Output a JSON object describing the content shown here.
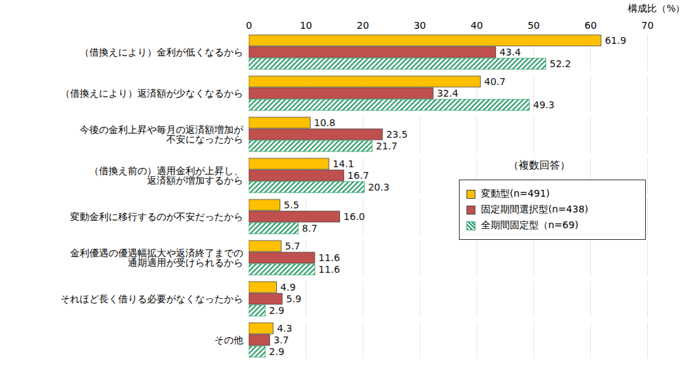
{
  "chart_data": {
    "type": "bar",
    "orientation": "horizontal",
    "x_label": "構成比（%）",
    "annotation": "（複数回答）",
    "categories": [
      "（借換えにより）金利が低くなるから",
      "（借換えにより）返済額が少なくなるから",
      "今後の金利上昇や毎月の返済額増加が\n不安になったから",
      "（借換え前の）適用金利が上昇し、\n返済額が増加するから",
      "変動金利に移行するのが不安だったから",
      "金利優遇の優遇幅拡大や返済終了までの\n通期適用が受けられるから",
      "それほど長く借りる必要がなくなったから",
      "その他"
    ],
    "series": [
      {
        "name": "変動型(n=491)",
        "color": "#FFC000",
        "values": [
          61.9,
          40.7,
          10.8,
          14.1,
          5.5,
          5.7,
          4.9,
          4.3
        ],
        "value_labels": [
          "61.9",
          "40.7",
          "10.8",
          "14.1",
          "5.5",
          "5.7",
          "4.9",
          "4.3"
        ]
      },
      {
        "name": "固定期間選択型(n=438)",
        "color": "#C0504D",
        "values": [
          43.4,
          32.4,
          23.5,
          16.7,
          16.0,
          11.6,
          5.9,
          3.7
        ],
        "value_labels": [
          "43.4",
          "32.4",
          "23.5",
          "16.7",
          "16.0",
          "11.6",
          "5.9",
          "3.7"
        ]
      },
      {
        "name": "全期間固定型（n=69)",
        "color": "#2E9E6A",
        "line_style": "hatched",
        "values": [
          52.2,
          49.3,
          21.7,
          20.3,
          8.7,
          11.6,
          2.9,
          2.9
        ],
        "value_labels": [
          "52.2",
          "49.3",
          "21.7",
          "20.3",
          "8.7",
          "11.6",
          "2.9",
          "2.9"
        ]
      }
    ],
    "xlim": [
      0,
      70
    ],
    "xticks": [
      0,
      10,
      20,
      30,
      40,
      50,
      60,
      70
    ],
    "grid": true,
    "data_labels": true,
    "legend": "right"
  }
}
